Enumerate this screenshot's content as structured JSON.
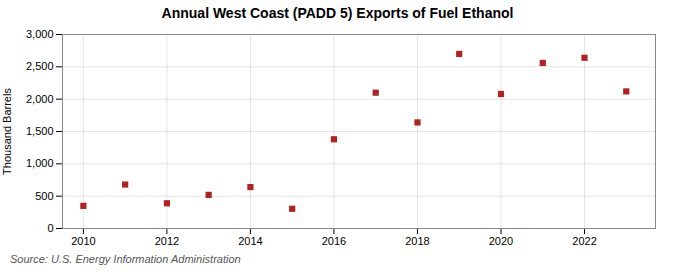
{
  "chart_data": {
    "type": "scatter",
    "title": "Annual West Coast (PADD 5) Exports of Fuel Ethanol",
    "ylabel": "Thousand Barrels",
    "annotations": [
      "Source: U.S. Energy Information Administration"
    ],
    "x": [
      2010,
      2011,
      2012,
      2013,
      2014,
      2015,
      2016,
      2017,
      2018,
      2019,
      2020,
      2021,
      2022,
      2023
    ],
    "values": [
      350,
      680,
      390,
      520,
      640,
      305,
      1380,
      2100,
      1640,
      2700,
      2080,
      2560,
      2640,
      2120
    ],
    "color": "#b22222",
    "marker": "square",
    "xlim": [
      2009.5,
      2023.7
    ],
    "xticks": [
      2010,
      2012,
      2014,
      2016,
      2018,
      2020,
      2022
    ],
    "ylim": [
      0,
      3000
    ],
    "yticks": [
      0,
      500,
      {
        "value": 1000,
        "label": "1,000"
      },
      {
        "value": 1500,
        "label": "1,500"
      },
      {
        "value": 2000,
        "label": "2,000"
      },
      {
        "value": 2500,
        "label": "2,500"
      },
      {
        "value": 3000,
        "label": "3,000"
      }
    ],
    "grid": true
  }
}
